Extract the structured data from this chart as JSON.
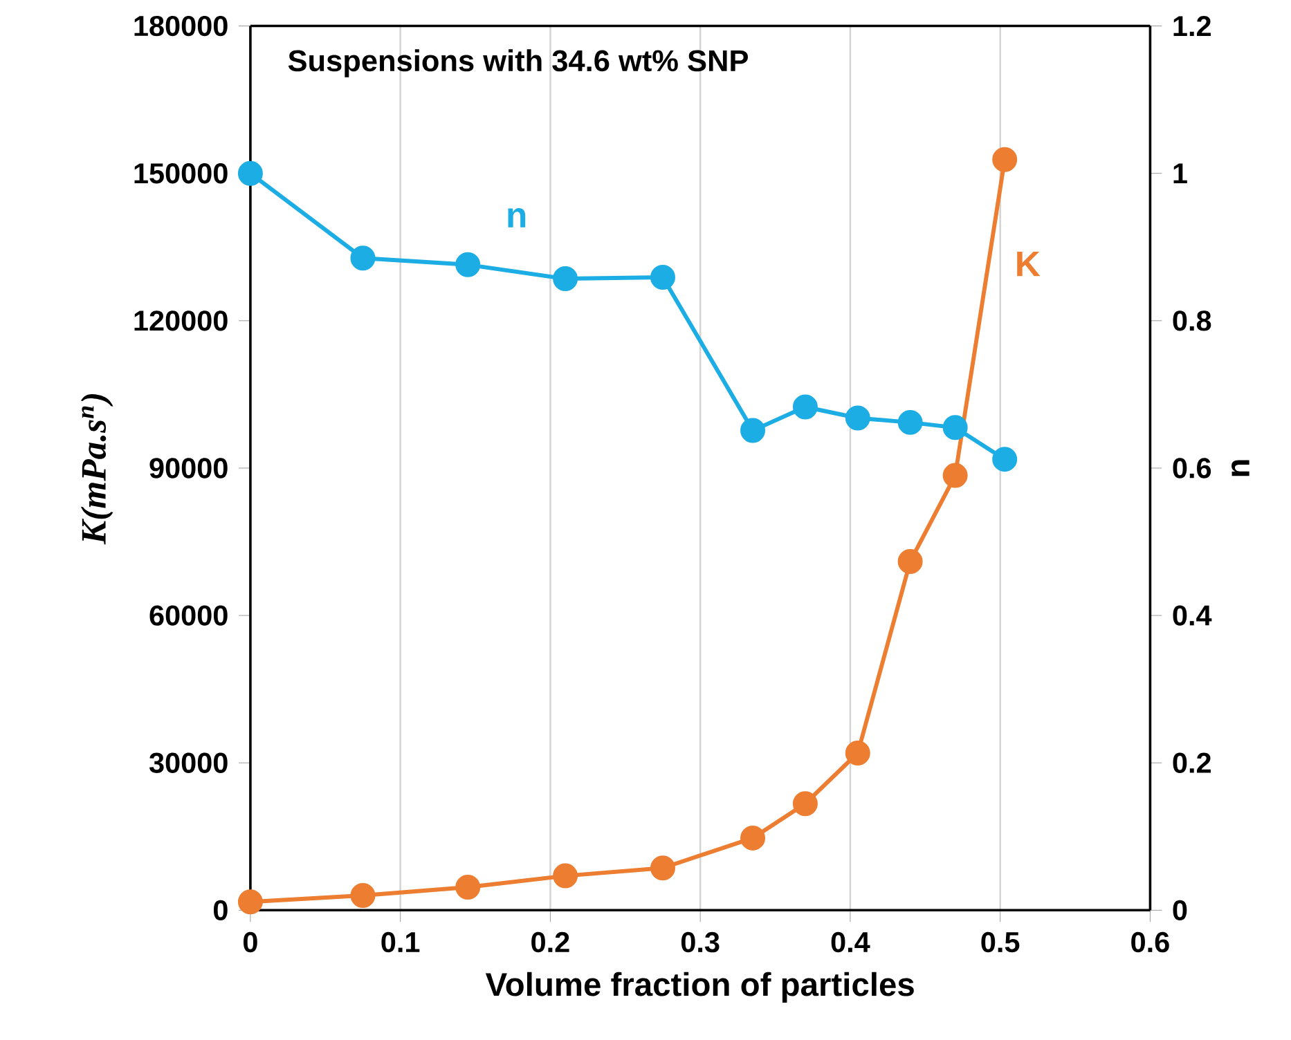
{
  "chart_data": {
    "type": "line",
    "title": "Suspensions with 34.6 wt% SNP",
    "xlabel": "Volume fraction of particles",
    "ylabel": "K(mPa.s$^{n}$)",
    "y2label": "n",
    "x": [
      0,
      0.075,
      0.145,
      0.21,
      0.275,
      0.335,
      0.37,
      0.405,
      0.44,
      0.47,
      0.503
    ],
    "series": [
      {
        "name": "n",
        "color": "#1cade4",
        "axis": "y2",
        "values": [
          1.0,
          0.885,
          0.876,
          0.857,
          0.859,
          0.651,
          0.683,
          0.668,
          0.662,
          0.655,
          0.612
        ]
      },
      {
        "name": "K",
        "color": "#ed7d31",
        "values": [
          1700,
          3000,
          4700,
          7000,
          8600,
          14700,
          21700,
          32000,
          71000,
          88500,
          152800
        ]
      }
    ],
    "xlim": [
      0,
      0.6
    ],
    "xticks": [
      0,
      0.1,
      0.2,
      0.3,
      0.4,
      0.5,
      0.6
    ],
    "ylim": [
      0,
      180000
    ],
    "yticks": [
      0,
      30000,
      60000,
      90000,
      120000,
      150000,
      180000
    ],
    "y2lim": [
      0,
      1.2
    ],
    "y2ticks": [
      0,
      0.2,
      0.4,
      0.6,
      0.8,
      1,
      1.2
    ],
    "grid": "x",
    "marker": "circle",
    "line_style": "solid"
  }
}
